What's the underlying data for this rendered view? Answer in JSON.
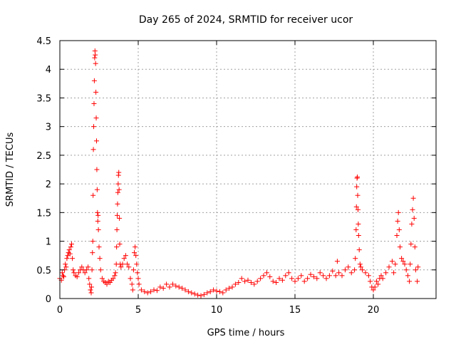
{
  "chart_data": {
    "type": "scatter",
    "title": "Day 265 of 2024, SRMTID for receiver ucor",
    "xlabel": "GPS time / hours",
    "ylabel": "SRMTID / TECUs",
    "xlim": [
      0,
      24
    ],
    "ylim": [
      0,
      4.5
    ],
    "grid": true,
    "marker": "+",
    "color": "#ff0000",
    "x_ticks": [
      0,
      5,
      10,
      15,
      20
    ],
    "x_tick_labels": [
      "0",
      "5",
      "10",
      "15",
      "20"
    ],
    "y_ticks": [
      0,
      0.5,
      1,
      1.5,
      2,
      2.5,
      3,
      3.5,
      4,
      4.5
    ],
    "y_tick_labels": [
      "0",
      "0.5",
      "1",
      "1.5",
      "2",
      "2.5",
      "3",
      "3.5",
      "4",
      "4.5"
    ],
    "series": [
      {
        "name": "SRMTID",
        "points": [
          [
            0.0,
            0.35
          ],
          [
            0.1,
            0.32
          ],
          [
            0.15,
            0.45
          ],
          [
            0.2,
            0.4
          ],
          [
            0.25,
            0.38
          ],
          [
            0.3,
            0.5
          ],
          [
            0.35,
            0.6
          ],
          [
            0.4,
            0.55
          ],
          [
            0.45,
            0.7
          ],
          [
            0.5,
            0.75
          ],
          [
            0.55,
            0.8
          ],
          [
            0.6,
            0.85
          ],
          [
            0.65,
            0.78
          ],
          [
            0.7,
            0.9
          ],
          [
            0.75,
            0.95
          ],
          [
            0.8,
            0.7
          ],
          [
            0.85,
            0.5
          ],
          [
            0.9,
            0.45
          ],
          [
            1.0,
            0.4
          ],
          [
            1.1,
            0.38
          ],
          [
            1.2,
            0.45
          ],
          [
            1.3,
            0.5
          ],
          [
            1.4,
            0.55
          ],
          [
            1.5,
            0.5
          ],
          [
            1.6,
            0.45
          ],
          [
            1.7,
            0.5
          ],
          [
            1.8,
            0.55
          ],
          [
            1.85,
            0.35
          ],
          [
            1.9,
            0.25
          ],
          [
            1.95,
            0.15
          ],
          [
            2.0,
            0.1
          ],
          [
            2.02,
            0.2
          ],
          [
            2.05,
            0.5
          ],
          [
            2.08,
            0.8
          ],
          [
            2.1,
            1.0
          ],
          [
            2.12,
            1.8
          ],
          [
            2.14,
            2.6
          ],
          [
            2.16,
            3.0
          ],
          [
            2.18,
            3.4
          ],
          [
            2.2,
            3.8
          ],
          [
            2.22,
            4.2
          ],
          [
            2.24,
            4.32
          ],
          [
            2.26,
            4.25
          ],
          [
            2.28,
            4.1
          ],
          [
            2.3,
            3.6
          ],
          [
            2.32,
            3.15
          ],
          [
            2.34,
            2.75
          ],
          [
            2.36,
            2.25
          ],
          [
            2.38,
            1.9
          ],
          [
            2.4,
            1.5
          ],
          [
            2.42,
            1.35
          ],
          [
            2.44,
            1.45
          ],
          [
            2.46,
            1.2
          ],
          [
            2.5,
            0.9
          ],
          [
            2.55,
            0.7
          ],
          [
            2.6,
            0.5
          ],
          [
            2.7,
            0.35
          ],
          [
            2.8,
            0.3
          ],
          [
            2.9,
            0.28
          ],
          [
            3.0,
            0.25
          ],
          [
            3.1,
            0.3
          ],
          [
            3.2,
            0.28
          ],
          [
            3.3,
            0.32
          ],
          [
            3.4,
            0.35
          ],
          [
            3.5,
            0.4
          ],
          [
            3.55,
            0.45
          ],
          [
            3.6,
            0.6
          ],
          [
            3.62,
            0.9
          ],
          [
            3.64,
            1.2
          ],
          [
            3.66,
            1.45
          ],
          [
            3.68,
            1.65
          ],
          [
            3.7,
            1.85
          ],
          [
            3.72,
            2.0
          ],
          [
            3.74,
            2.15
          ],
          [
            3.76,
            2.2
          ],
          [
            3.78,
            1.9
          ],
          [
            3.8,
            1.4
          ],
          [
            3.82,
            0.95
          ],
          [
            3.85,
            0.6
          ],
          [
            3.9,
            0.55
          ],
          [
            4.0,
            0.6
          ],
          [
            4.1,
            0.7
          ],
          [
            4.2,
            0.75
          ],
          [
            4.3,
            0.6
          ],
          [
            4.4,
            0.55
          ],
          [
            4.5,
            0.35
          ],
          [
            4.6,
            0.25
          ],
          [
            4.65,
            0.15
          ],
          [
            4.7,
            0.5
          ],
          [
            4.75,
            0.8
          ],
          [
            4.8,
            0.9
          ],
          [
            4.85,
            0.75
          ],
          [
            4.9,
            0.6
          ],
          [
            4.95,
            0.45
          ],
          [
            5.0,
            0.35
          ],
          [
            5.05,
            0.25
          ],
          [
            5.2,
            0.15
          ],
          [
            5.4,
            0.12
          ],
          [
            5.6,
            0.1
          ],
          [
            5.8,
            0.12
          ],
          [
            6.0,
            0.15
          ],
          [
            6.2,
            0.14
          ],
          [
            6.4,
            0.2
          ],
          [
            6.6,
            0.18
          ],
          [
            6.8,
            0.25
          ],
          [
            7.0,
            0.2
          ],
          [
            7.2,
            0.25
          ],
          [
            7.4,
            0.22
          ],
          [
            7.6,
            0.2
          ],
          [
            7.8,
            0.18
          ],
          [
            8.0,
            0.15
          ],
          [
            8.2,
            0.12
          ],
          [
            8.4,
            0.1
          ],
          [
            8.6,
            0.08
          ],
          [
            8.8,
            0.06
          ],
          [
            9.0,
            0.05
          ],
          [
            9.2,
            0.07
          ],
          [
            9.4,
            0.1
          ],
          [
            9.6,
            0.12
          ],
          [
            9.8,
            0.15
          ],
          [
            10.0,
            0.13
          ],
          [
            10.2,
            0.12
          ],
          [
            10.4,
            0.1
          ],
          [
            10.6,
            0.15
          ],
          [
            10.8,
            0.18
          ],
          [
            11.0,
            0.2
          ],
          [
            11.2,
            0.25
          ],
          [
            11.4,
            0.28
          ],
          [
            11.6,
            0.35
          ],
          [
            11.8,
            0.3
          ],
          [
            12.0,
            0.32
          ],
          [
            12.2,
            0.28
          ],
          [
            12.4,
            0.25
          ],
          [
            12.6,
            0.3
          ],
          [
            12.8,
            0.35
          ],
          [
            13.0,
            0.4
          ],
          [
            13.2,
            0.45
          ],
          [
            13.4,
            0.38
          ],
          [
            13.6,
            0.3
          ],
          [
            13.8,
            0.28
          ],
          [
            14.0,
            0.35
          ],
          [
            14.2,
            0.32
          ],
          [
            14.4,
            0.4
          ],
          [
            14.6,
            0.45
          ],
          [
            14.8,
            0.35
          ],
          [
            15.0,
            0.3
          ],
          [
            15.2,
            0.35
          ],
          [
            15.4,
            0.4
          ],
          [
            15.6,
            0.3
          ],
          [
            15.8,
            0.35
          ],
          [
            16.0,
            0.42
          ],
          [
            16.2,
            0.38
          ],
          [
            16.4,
            0.35
          ],
          [
            16.6,
            0.45
          ],
          [
            16.8,
            0.4
          ],
          [
            17.0,
            0.35
          ],
          [
            17.2,
            0.4
          ],
          [
            17.4,
            0.48
          ],
          [
            17.6,
            0.4
          ],
          [
            17.7,
            0.65
          ],
          [
            17.8,
            0.45
          ],
          [
            18.0,
            0.4
          ],
          [
            18.2,
            0.5
          ],
          [
            18.4,
            0.55
          ],
          [
            18.6,
            0.45
          ],
          [
            18.8,
            0.5
          ],
          [
            18.85,
            0.7
          ],
          [
            18.9,
            1.2
          ],
          [
            18.92,
            1.6
          ],
          [
            18.94,
            1.95
          ],
          [
            18.96,
            2.1
          ],
          [
            18.98,
            2.12
          ],
          [
            19.0,
            1.8
          ],
          [
            19.02,
            1.55
          ],
          [
            19.04,
            1.3
          ],
          [
            19.06,
            1.1
          ],
          [
            19.1,
            0.85
          ],
          [
            19.15,
            0.6
          ],
          [
            19.2,
            0.55
          ],
          [
            19.3,
            0.5
          ],
          [
            19.5,
            0.45
          ],
          [
            19.7,
            0.4
          ],
          [
            19.8,
            0.3
          ],
          [
            19.9,
            0.2
          ],
          [
            20.0,
            0.15
          ],
          [
            20.1,
            0.2
          ],
          [
            20.2,
            0.3
          ],
          [
            20.3,
            0.25
          ],
          [
            20.4,
            0.35
          ],
          [
            20.5,
            0.4
          ],
          [
            20.6,
            0.35
          ],
          [
            20.8,
            0.45
          ],
          [
            21.0,
            0.55
          ],
          [
            21.2,
            0.65
          ],
          [
            21.3,
            0.45
          ],
          [
            21.4,
            0.6
          ],
          [
            21.5,
            1.1
          ],
          [
            21.55,
            1.35
          ],
          [
            21.6,
            1.5
          ],
          [
            21.65,
            1.2
          ],
          [
            21.7,
            0.9
          ],
          [
            21.8,
            0.7
          ],
          [
            21.9,
            0.65
          ],
          [
            22.0,
            0.6
          ],
          [
            22.1,
            0.5
          ],
          [
            22.2,
            0.4
          ],
          [
            22.3,
            0.3
          ],
          [
            22.35,
            0.6
          ],
          [
            22.4,
            0.95
          ],
          [
            22.45,
            1.3
          ],
          [
            22.5,
            1.55
          ],
          [
            22.55,
            1.75
          ],
          [
            22.6,
            1.4
          ],
          [
            22.65,
            0.9
          ],
          [
            22.7,
            0.5
          ],
          [
            22.8,
            0.3
          ],
          [
            22.85,
            0.55
          ]
        ]
      }
    ]
  }
}
